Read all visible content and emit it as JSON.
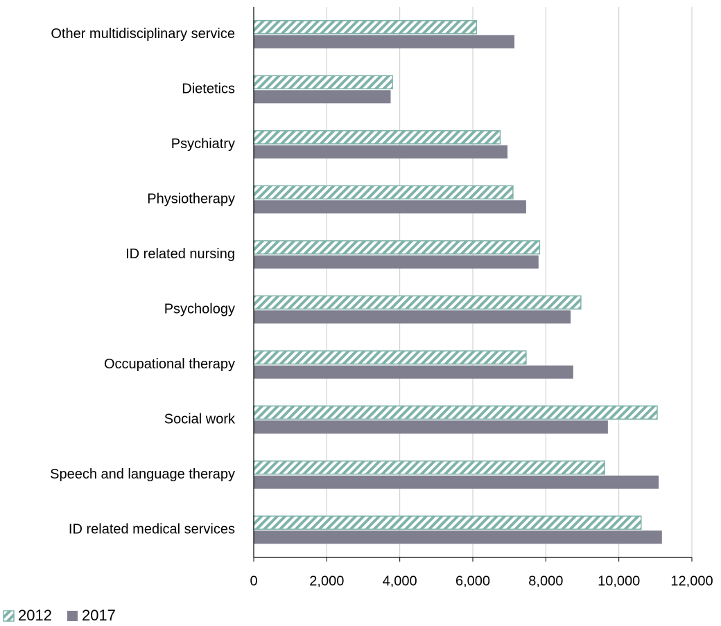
{
  "chart_data": {
    "type": "hbar",
    "categories": [
      "Other multidisciplinary service",
      "Dietetics",
      "Psychiatry",
      "Physiotherapy",
      "ID related nursing",
      "Psychology",
      "Occupational therapy",
      "Social work",
      "Speech and language therapy",
      "ID related medical services"
    ],
    "series": [
      {
        "name": "2012",
        "color": "#7fb3aa",
        "hatch": true,
        "values": [
          6100,
          3800,
          6750,
          7100,
          7830,
          8960,
          7460,
          11050,
          9610,
          10610
        ]
      },
      {
        "name": "2017",
        "color": "#7f7f8f",
        "hatch": false,
        "values": [
          7140,
          3750,
          6950,
          7460,
          7800,
          8680,
          8750,
          9700,
          11090,
          11180
        ]
      }
    ],
    "xlim": [
      0,
      12000
    ],
    "xticks": [
      0,
      {
        "value": 2000,
        "label": "2,000"
      },
      {
        "value": 4000,
        "label": "4,000"
      },
      {
        "value": 6000,
        "label": "6,000"
      },
      {
        "value": 8000,
        "label": "8,000"
      },
      {
        "value": 10000,
        "label": "10,000"
      },
      {
        "value": 12000,
        "label": "12,000"
      }
    ],
    "grid": true,
    "legend": "bottom-left"
  }
}
